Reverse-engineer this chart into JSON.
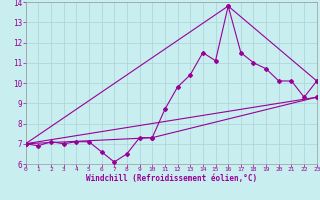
{
  "xlabel": "Windchill (Refroidissement éolien,°C)",
  "background_color": "#c8eef0",
  "line_color": "#990099",
  "xmin": 0,
  "xmax": 23,
  "ymin": 6,
  "ymax": 14,
  "line1_x": [
    0,
    1,
    2,
    3,
    4,
    5,
    6,
    7,
    8,
    9,
    10,
    11,
    12,
    13,
    14,
    15,
    16,
    17,
    18,
    19,
    20,
    21,
    22,
    23
  ],
  "line1_y": [
    7.0,
    6.9,
    7.1,
    7.0,
    7.1,
    7.1,
    6.6,
    6.1,
    6.5,
    7.3,
    7.3,
    8.7,
    9.8,
    10.4,
    11.5,
    11.1,
    13.8,
    11.5,
    11.0,
    10.7,
    10.1,
    10.1,
    9.3,
    10.1
  ],
  "line2_x": [
    0,
    23
  ],
  "line2_y": [
    7.0,
    9.3
  ],
  "line3_x": [
    0,
    10,
    23
  ],
  "line3_y": [
    7.0,
    7.3,
    9.3
  ],
  "line4_x": [
    0,
    16,
    23
  ],
  "line4_y": [
    7.0,
    13.8,
    10.1
  ],
  "xtick_fontsize": 4.5,
  "ytick_fontsize": 5.5,
  "xlabel_fontsize": 5.5,
  "grid_color": "#aad4d8",
  "marker": "D",
  "marker_size": 2.0,
  "linewidth": 0.8
}
